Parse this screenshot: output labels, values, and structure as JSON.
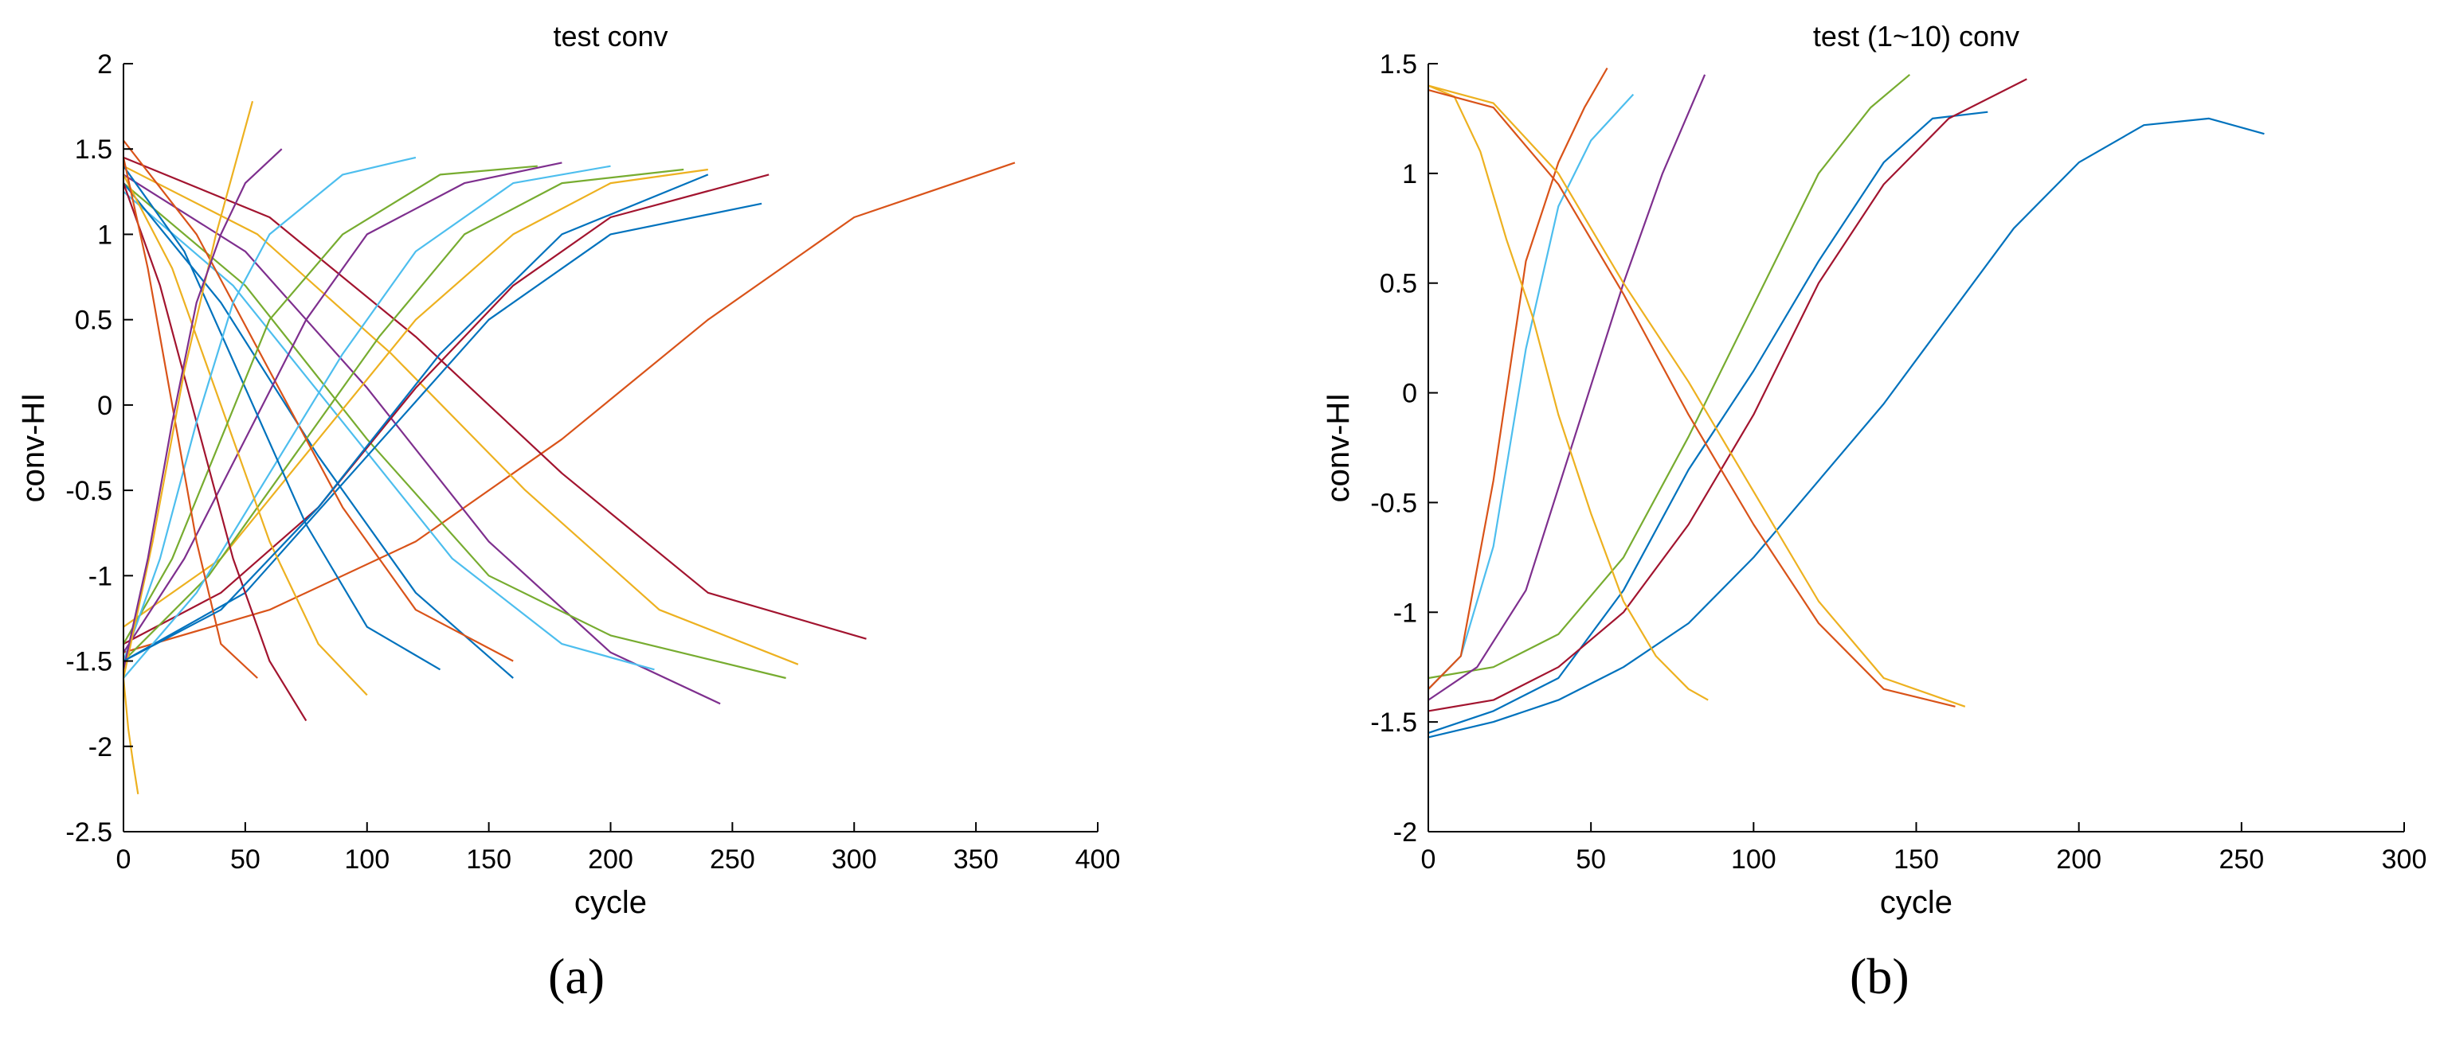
{
  "figure": {
    "panel_labels": [
      "(a)",
      "(b)"
    ]
  },
  "chart_data": [
    {
      "type": "line",
      "title": "test conv",
      "xlabel": "cycle",
      "ylabel": "conv-HI",
      "xlim": [
        0,
        400
      ],
      "ylim": [
        -2.5,
        2
      ],
      "xticks": [
        0,
        50,
        100,
        150,
        200,
        250,
        300,
        350,
        400
      ],
      "yticks": [
        -2.5,
        -2,
        -1.5,
        -1,
        -0.5,
        0,
        0.5,
        1,
        1.5,
        2
      ],
      "xtick_labels": [
        "0",
        "50",
        "100",
        "150",
        "200",
        "250",
        "300",
        "350",
        "400"
      ],
      "ytick_labels": [
        "-2.5",
        "-2",
        "-1.5",
        "-1",
        "-0.5",
        "0",
        "0.5",
        "1",
        "1.5",
        "2"
      ],
      "grid": false,
      "palette": [
        "#0072BD",
        "#D95319",
        "#EDB120",
        "#7E2F8E",
        "#77AC30",
        "#4DBEEE",
        "#A2142F"
      ],
      "series": [
        {
          "color": "#D95319",
          "x": [
            0,
            60,
            120,
            180,
            240,
            300,
            366
          ],
          "y": [
            -1.45,
            -1.2,
            -0.8,
            -0.2,
            0.5,
            1.1,
            1.42
          ]
        },
        {
          "color": "#A2142F",
          "x": [
            0,
            60,
            120,
            180,
            240,
            305
          ],
          "y": [
            1.45,
            1.1,
            0.4,
            -0.4,
            -1.1,
            -1.37
          ]
        },
        {
          "color": "#EDB120",
          "x": [
            0,
            55,
            110,
            165,
            220,
            277
          ],
          "y": [
            1.4,
            1.0,
            0.3,
            -0.5,
            -1.2,
            -1.52
          ]
        },
        {
          "color": "#7E2F8E",
          "x": [
            0,
            50,
            100,
            150,
            200,
            245
          ],
          "y": [
            1.35,
            0.9,
            0.1,
            -0.8,
            -1.45,
            -1.75
          ]
        },
        {
          "color": "#77AC30",
          "x": [
            0,
            50,
            100,
            150,
            200,
            272
          ],
          "y": [
            1.3,
            0.7,
            -0.2,
            -1.0,
            -1.35,
            -1.6
          ]
        },
        {
          "color": "#4DBEEE",
          "x": [
            0,
            45,
            90,
            135,
            180,
            218
          ],
          "y": [
            1.25,
            0.7,
            -0.1,
            -0.9,
            -1.4,
            -1.55
          ]
        },
        {
          "color": "#0072BD",
          "x": [
            0,
            40,
            80,
            120,
            160
          ],
          "y": [
            1.3,
            0.6,
            -0.3,
            -1.1,
            -1.6
          ]
        },
        {
          "color": "#A2142F",
          "x": [
            0,
            40,
            80,
            120,
            160,
            200,
            265
          ],
          "y": [
            -1.4,
            -1.1,
            -0.6,
            0.1,
            0.7,
            1.1,
            1.35
          ]
        },
        {
          "color": "#0072BD",
          "x": [
            0,
            50,
            100,
            150,
            200,
            262
          ],
          "y": [
            -1.5,
            -1.1,
            -0.3,
            0.5,
            1.0,
            1.18
          ]
        },
        {
          "color": "#EDB120",
          "x": [
            0,
            40,
            80,
            120,
            160,
            200,
            240
          ],
          "y": [
            -1.3,
            -0.9,
            -0.2,
            0.5,
            1.0,
            1.3,
            1.38
          ]
        },
        {
          "color": "#77AC30",
          "x": [
            0,
            35,
            70,
            105,
            140,
            180,
            230
          ],
          "y": [
            -1.5,
            -1.0,
            -0.3,
            0.4,
            1.0,
            1.3,
            1.38
          ]
        },
        {
          "color": "#D95319",
          "x": [
            0,
            30,
            60,
            90,
            120,
            160
          ],
          "y": [
            1.55,
            1.0,
            0.2,
            -0.6,
            -1.2,
            -1.5
          ]
        },
        {
          "color": "#4DBEEE",
          "x": [
            0,
            30,
            60,
            90,
            120,
            160,
            200
          ],
          "y": [
            -1.6,
            -1.1,
            -0.4,
            0.3,
            0.9,
            1.3,
            1.4
          ]
        },
        {
          "color": "#7E2F8E",
          "x": [
            0,
            25,
            50,
            75,
            100,
            140,
            180
          ],
          "y": [
            -1.45,
            -0.9,
            -0.2,
            0.5,
            1.0,
            1.3,
            1.42
          ]
        },
        {
          "color": "#0072BD",
          "x": [
            0,
            25,
            50,
            75,
            100,
            130
          ],
          "y": [
            1.4,
            0.9,
            0.1,
            -0.7,
            -1.3,
            -1.55
          ]
        },
        {
          "color": "#EDB120",
          "x": [
            0,
            20,
            40,
            60,
            80,
            100
          ],
          "y": [
            1.35,
            0.8,
            0.0,
            -0.8,
            -1.4,
            -1.7
          ]
        },
        {
          "color": "#77AC30",
          "x": [
            0,
            20,
            40,
            60,
            90,
            130,
            170
          ],
          "y": [
            -1.4,
            -0.9,
            -0.2,
            0.5,
            1.0,
            1.35,
            1.4
          ]
        },
        {
          "color": "#A2142F",
          "x": [
            0,
            15,
            30,
            45,
            60,
            75
          ],
          "y": [
            1.3,
            0.7,
            -0.1,
            -0.9,
            -1.5,
            -1.85
          ]
        },
        {
          "color": "#4DBEEE",
          "x": [
            0,
            15,
            30,
            45,
            60,
            90,
            120
          ],
          "y": [
            -1.5,
            -0.9,
            -0.1,
            0.6,
            1.0,
            1.35,
            1.45
          ]
        },
        {
          "color": "#D95319",
          "x": [
            0,
            10,
            20,
            30,
            40,
            55
          ],
          "y": [
            1.45,
            0.8,
            0.0,
            -0.8,
            -1.4,
            -1.6
          ]
        },
        {
          "color": "#EDB120",
          "x": [
            0,
            12,
            25,
            38,
            53
          ],
          "y": [
            -1.6,
            -0.8,
            0.2,
            1.0,
            1.78
          ]
        },
        {
          "color": "#7E2F8E",
          "x": [
            0,
            10,
            20,
            30,
            40,
            50,
            65
          ],
          "y": [
            -1.55,
            -0.9,
            -0.1,
            0.6,
            1.0,
            1.3,
            1.5
          ]
        },
        {
          "color": "#0072BD",
          "x": [
            0,
            40,
            80,
            130,
            180,
            240
          ],
          "y": [
            -1.5,
            -1.2,
            -0.6,
            0.3,
            1.0,
            1.35
          ]
        },
        {
          "color": "#EDB120",
          "x": [
            0,
            2,
            4,
            6
          ],
          "y": [
            -1.6,
            -1.9,
            -2.1,
            -2.28
          ]
        }
      ]
    },
    {
      "type": "line",
      "title": "test (1~10) conv",
      "xlabel": "cycle",
      "ylabel": "conv-HI",
      "xlim": [
        0,
        300
      ],
      "ylim": [
        -2,
        1.5
      ],
      "xticks": [
        0,
        50,
        100,
        150,
        200,
        250,
        300
      ],
      "yticks": [
        -2,
        -1.5,
        -1,
        -0.5,
        0,
        0.5,
        1,
        1.5
      ],
      "xtick_labels": [
        "0",
        "50",
        "100",
        "150",
        "200",
        "250",
        "300"
      ],
      "ytick_labels": [
        "-2",
        "-1.5",
        "-1",
        "-0.5",
        "0",
        "0.5",
        "1",
        "1.5"
      ],
      "grid": false,
      "series": [
        {
          "color": "#0072BD",
          "x": [
            0,
            20,
            40,
            60,
            80,
            100,
            120,
            140,
            160,
            180,
            200,
            220,
            240,
            257
          ],
          "y": [
            -1.57,
            -1.5,
            -1.4,
            -1.25,
            -1.05,
            -0.75,
            -0.4,
            -0.05,
            0.35,
            0.75,
            1.05,
            1.22,
            1.25,
            1.18
          ]
        },
        {
          "color": "#0072BD",
          "x": [
            0,
            20,
            40,
            60,
            80,
            100,
            120,
            140,
            155,
            172
          ],
          "y": [
            -1.55,
            -1.45,
            -1.3,
            -0.9,
            -0.35,
            0.1,
            0.6,
            1.05,
            1.25,
            1.28
          ]
        },
        {
          "color": "#A2142F",
          "x": [
            0,
            20,
            40,
            60,
            80,
            100,
            120,
            140,
            160,
            184
          ],
          "y": [
            -1.45,
            -1.4,
            -1.25,
            -1.0,
            -0.6,
            -0.1,
            0.5,
            0.95,
            1.25,
            1.43
          ]
        },
        {
          "color": "#77AC30",
          "x": [
            0,
            20,
            40,
            60,
            80,
            100,
            120,
            136,
            148
          ],
          "y": [
            -1.3,
            -1.25,
            -1.1,
            -0.75,
            -0.2,
            0.4,
            1.0,
            1.3,
            1.45
          ]
        },
        {
          "color": "#7E2F8E",
          "x": [
            0,
            15,
            30,
            45,
            60,
            72,
            85
          ],
          "y": [
            -1.4,
            -1.25,
            -0.9,
            -0.2,
            0.5,
            1.0,
            1.45
          ]
        },
        {
          "color": "#4DBEEE",
          "x": [
            0,
            10,
            20,
            30,
            40,
            50,
            63
          ],
          "y": [
            -1.35,
            -1.2,
            -0.7,
            0.2,
            0.85,
            1.15,
            1.36
          ]
        },
        {
          "color": "#D95319",
          "x": [
            0,
            10,
            20,
            30,
            40,
            48,
            55
          ],
          "y": [
            -1.35,
            -1.2,
            -0.4,
            0.6,
            1.05,
            1.3,
            1.48
          ]
        },
        {
          "color": "#EDB120",
          "x": [
            0,
            8,
            16,
            24,
            32,
            40,
            50,
            60,
            70,
            80,
            86
          ],
          "y": [
            1.4,
            1.35,
            1.1,
            0.7,
            0.35,
            -0.1,
            -0.55,
            -0.95,
            -1.2,
            -1.35,
            -1.4
          ]
        },
        {
          "color": "#D95319",
          "x": [
            0,
            20,
            40,
            60,
            80,
            100,
            120,
            140,
            162
          ],
          "y": [
            1.38,
            1.3,
            0.95,
            0.45,
            -0.1,
            -0.6,
            -1.05,
            -1.35,
            -1.43
          ]
        },
        {
          "color": "#EDB120",
          "x": [
            0,
            20,
            40,
            60,
            80,
            100,
            120,
            140,
            165
          ],
          "y": [
            1.4,
            1.32,
            1.0,
            0.5,
            0.05,
            -0.45,
            -0.95,
            -1.3,
            -1.43
          ]
        }
      ]
    }
  ]
}
